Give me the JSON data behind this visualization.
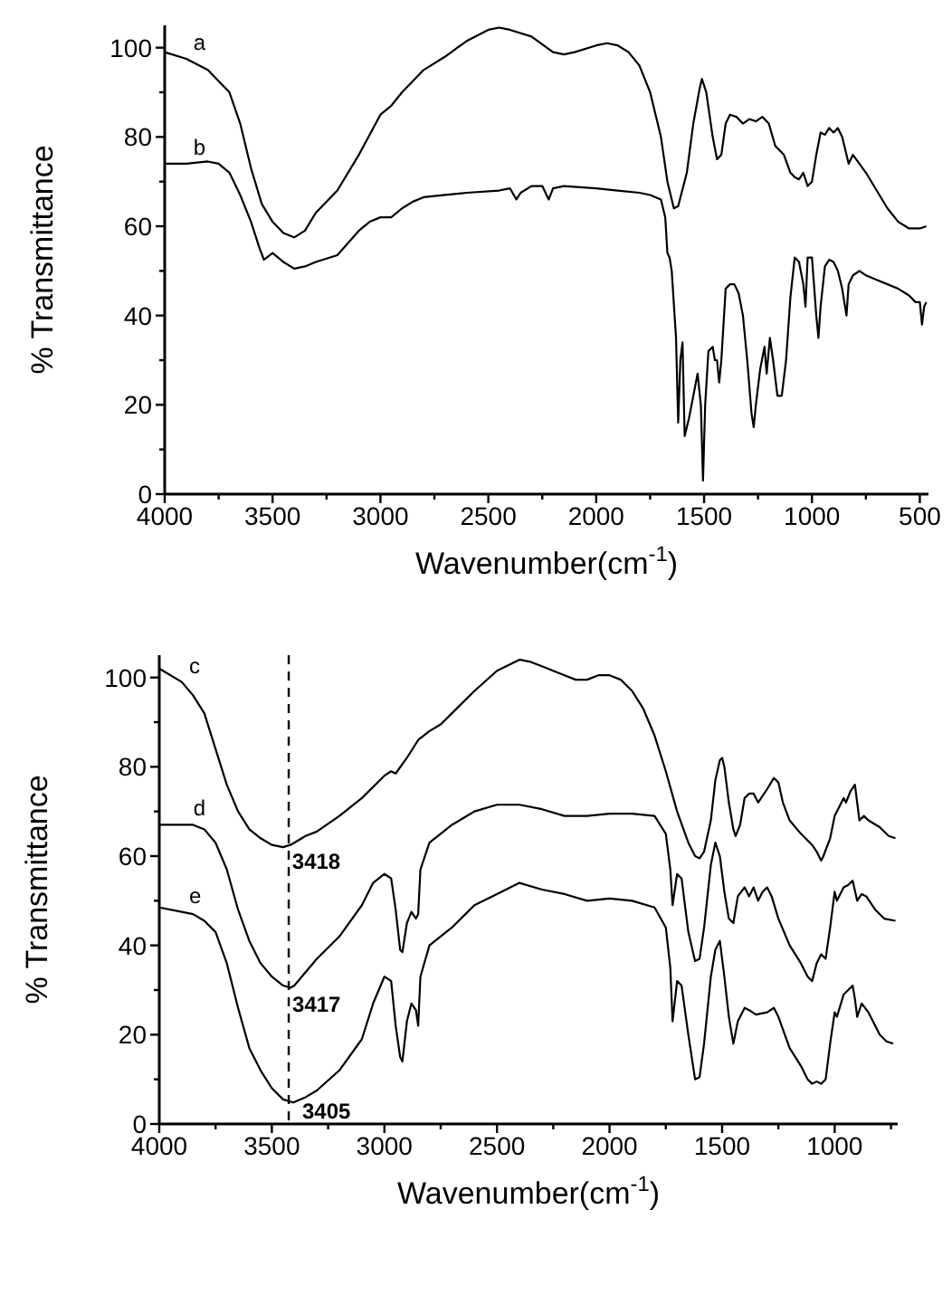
{
  "chart_data": [
    {
      "type": "line",
      "xlabel": "Wavenumber(cm$^{-1}$)",
      "ylabel": "% Transmittance",
      "xlim": [
        4000,
        460
      ],
      "ylim": [
        0,
        105
      ],
      "xticks": [
        4000,
        {
          "value": 3750,
          "label": null
        },
        3500,
        {
          "value": 3250,
          "label": null
        },
        3000,
        {
          "value": 2750,
          "label": null
        },
        2500,
        {
          "value": 2250,
          "label": null
        },
        2000,
        {
          "value": 1750,
          "label": null
        },
        1500,
        {
          "value": 1250,
          "label": null
        },
        1000,
        {
          "value": 750,
          "label": null
        },
        500
      ],
      "yticks": [
        0,
        {
          "value": 10,
          "label": null
        },
        20,
        {
          "value": 30,
          "label": null
        },
        40,
        {
          "value": 50,
          "label": null
        },
        60,
        {
          "value": 70,
          "label": null
        },
        80,
        {
          "value": 90,
          "label": null
        },
        100
      ],
      "grid": false,
      "annotations": [
        {
          "text": "a",
          "x": 3900,
          "y": 97.5
        },
        {
          "text": "b",
          "x": 3900,
          "y": 74
        }
      ],
      "series": [
        {
          "color": "#000000",
          "x": [
            4000,
            3900,
            3800,
            3700,
            3650,
            3600,
            3550,
            3500,
            3450,
            3400,
            3350,
            3300,
            3200,
            3100,
            3000,
            2950,
            2900,
            2800,
            2700,
            2600,
            2500,
            2450,
            2400,
            2300,
            2200,
            2150,
            2100,
            2000,
            1950,
            1900,
            1850,
            1800,
            1750,
            1700,
            1670,
            1640,
            1620,
            1580,
            1550,
            1520,
            1510,
            1490,
            1460,
            1440,
            1420,
            1400,
            1380,
            1350,
            1320,
            1290,
            1260,
            1230,
            1200,
            1170,
            1130,
            1100,
            1080,
            1060,
            1040,
            1020,
            1000,
            980,
            960,
            940,
            920,
            900,
            880,
            860,
            840,
            830,
            810,
            780,
            750,
            700,
            650,
            600,
            550,
            500,
            470
          ],
          "values": [
            99,
            97.5,
            95,
            90,
            83,
            73,
            65,
            61,
            58.5,
            57.5,
            59,
            63,
            68,
            76,
            85,
            87,
            90,
            95,
            98,
            101.5,
            104,
            104.5,
            104,
            102.5,
            99,
            98.5,
            99,
            100.5,
            101,
            100.5,
            99,
            96,
            90,
            80,
            70,
            64,
            64.5,
            72,
            83,
            91,
            93,
            90,
            80,
            75,
            76,
            83,
            85,
            84.5,
            83,
            84,
            83.5,
            84.5,
            83,
            78,
            76,
            72,
            71,
            70.5,
            72,
            69,
            70,
            76,
            81,
            80.5,
            82,
            81,
            82,
            80,
            76,
            74,
            76,
            74,
            72,
            68,
            64,
            61,
            59.5,
            59.5,
            60
          ]
        },
        {
          "color": "#000000",
          "x": [
            4000,
            3900,
            3800,
            3750,
            3700,
            3650,
            3600,
            3560,
            3540,
            3500,
            3450,
            3400,
            3350,
            3300,
            3200,
            3100,
            3050,
            3000,
            2950,
            2900,
            2850,
            2800,
            2700,
            2600,
            2450,
            2400,
            2370,
            2350,
            2300,
            2250,
            2220,
            2200,
            2150,
            2000,
            1900,
            1800,
            1750,
            1700,
            1680,
            1670,
            1660,
            1650,
            1630,
            1620,
            1610,
            1600,
            1590,
            1570,
            1550,
            1530,
            1515,
            1505,
            1495,
            1480,
            1460,
            1450,
            1440,
            1430,
            1420,
            1400,
            1380,
            1360,
            1340,
            1320,
            1300,
            1280,
            1270,
            1260,
            1240,
            1220,
            1210,
            1195,
            1180,
            1160,
            1140,
            1120,
            1100,
            1080,
            1060,
            1040,
            1030,
            1020,
            1000,
            980,
            970,
            960,
            940,
            920,
            900,
            880,
            860,
            840,
            830,
            810,
            780,
            750,
            700,
            650,
            600,
            550,
            520,
            500,
            490,
            480,
            470
          ],
          "values": [
            74,
            74,
            74.5,
            74,
            72,
            67,
            61,
            55,
            52.5,
            54,
            52,
            50.5,
            51,
            52,
            53.5,
            59,
            61,
            62,
            62,
            64,
            65.5,
            66.5,
            67,
            67.5,
            68,
            68.5,
            66,
            67.5,
            69,
            69,
            66,
            68.5,
            69,
            68.5,
            68,
            67.5,
            67,
            66,
            62,
            54,
            53,
            50,
            35,
            16,
            30,
            34,
            13,
            17,
            22,
            27,
            20,
            3,
            20,
            32,
            33,
            30,
            30,
            25,
            30,
            46,
            47,
            47,
            45,
            40,
            30,
            18,
            15,
            20,
            28,
            33,
            27,
            35,
            30,
            22,
            22,
            30,
            44,
            53,
            52,
            47,
            42,
            53,
            53,
            40,
            35,
            42,
            51,
            52.5,
            52,
            50,
            46,
            40,
            47,
            49,
            50,
            49,
            48,
            47,
            46,
            44.5,
            43,
            43,
            38,
            42,
            43
          ]
        }
      ]
    },
    {
      "type": "line",
      "xlabel": "Wavenumber(cm$^{-1}$)",
      "ylabel": "% Transmittance",
      "xlim": [
        4000,
        720
      ],
      "ylim": [
        0,
        105
      ],
      "xticks": [
        4000,
        {
          "value": 3750,
          "label": null
        },
        3500,
        {
          "value": 3250,
          "label": null
        },
        3000,
        {
          "value": 2750,
          "label": null
        },
        2500,
        {
          "value": 2250,
          "label": null
        },
        2000,
        {
          "value": 1750,
          "label": null
        },
        1500,
        {
          "value": 1250,
          "label": null
        },
        1000,
        {
          "value": 750,
          "label": null
        }
      ],
      "yticks": [
        0,
        {
          "value": 10,
          "label": null
        },
        20,
        {
          "value": 30,
          "label": null
        },
        40,
        {
          "value": 50,
          "label": null
        },
        60,
        {
          "value": 70,
          "label": null
        },
        80,
        {
          "value": 90,
          "label": null
        },
        100
      ],
      "grid": false,
      "ref_lines": [
        {
          "axis": "x",
          "value": 3425,
          "line_style": "dashed",
          "color": "#000000"
        }
      ],
      "annotations": [
        {
          "text": "c",
          "x": 3900,
          "y": 99
        },
        {
          "text": "d",
          "x": 3880,
          "y": 67
        },
        {
          "text": "e",
          "x": 3900,
          "y": 47.5
        },
        {
          "text": "3418",
          "x": 3418,
          "y": 62.5
        },
        {
          "text": "3417",
          "x": 3417,
          "y": 30.5
        },
        {
          "text": "3405",
          "x": 3405,
          "y": 4.8
        }
      ],
      "series": [
        {
          "color": "#000000",
          "x": [
            4000,
            3900,
            3850,
            3800,
            3750,
            3700,
            3650,
            3600,
            3550,
            3500,
            3450,
            3418,
            3400,
            3350,
            3300,
            3200,
            3100,
            3000,
            2970,
            2950,
            2900,
            2850,
            2800,
            2750,
            2700,
            2600,
            2500,
            2400,
            2350,
            2300,
            2200,
            2150,
            2100,
            2050,
            2000,
            1950,
            1900,
            1850,
            1800,
            1750,
            1700,
            1650,
            1620,
            1600,
            1580,
            1550,
            1530,
            1510,
            1500,
            1490,
            1470,
            1450,
            1440,
            1420,
            1400,
            1380,
            1360,
            1340,
            1300,
            1270,
            1250,
            1230,
            1200,
            1150,
            1120,
            1100,
            1080,
            1060,
            1050,
            1020,
            1000,
            980,
            960,
            950,
            930,
            910,
            900,
            890,
            870,
            850,
            800,
            760,
            730
          ],
          "values": [
            102,
            99,
            96,
            92,
            84,
            76,
            70,
            66,
            64,
            62.5,
            62,
            62.5,
            63,
            64.5,
            65.5,
            69,
            73,
            78,
            79,
            78.5,
            82,
            86,
            88,
            89.5,
            92,
            97,
            101.5,
            104,
            103.5,
            102.5,
            100.5,
            99.5,
            99.5,
            100.5,
            100.5,
            99.5,
            97,
            93,
            87,
            79,
            70,
            63,
            60,
            59.5,
            61,
            68,
            77,
            81.5,
            82,
            80,
            72,
            66,
            64.5,
            67,
            73,
            74,
            74,
            72,
            75,
            77.5,
            76.5,
            72,
            68,
            65,
            63.5,
            62.5,
            61,
            59,
            60,
            64,
            69,
            71,
            73,
            72,
            74.5,
            76,
            72,
            68,
            69,
            68,
            66.5,
            64.5,
            64
          ]
        },
        {
          "color": "#000000",
          "x": [
            4000,
            3900,
            3850,
            3800,
            3750,
            3700,
            3650,
            3600,
            3550,
            3500,
            3450,
            3417,
            3400,
            3350,
            3300,
            3200,
            3100,
            3050,
            3000,
            2970,
            2950,
            2930,
            2920,
            2900,
            2880,
            2860,
            2850,
            2840,
            2800,
            2750,
            2700,
            2600,
            2500,
            2400,
            2300,
            2200,
            2100,
            2000,
            1900,
            1800,
            1750,
            1730,
            1720,
            1700,
            1680,
            1650,
            1620,
            1600,
            1580,
            1550,
            1530,
            1510,
            1490,
            1470,
            1450,
            1430,
            1400,
            1380,
            1360,
            1340,
            1320,
            1300,
            1280,
            1250,
            1200,
            1150,
            1120,
            1100,
            1080,
            1060,
            1040,
            1020,
            1000,
            990,
            960,
            940,
            920,
            900,
            880,
            860,
            820,
            780,
            730
          ],
          "values": [
            67,
            67,
            67,
            66,
            63,
            57,
            48,
            41,
            36,
            33,
            31,
            30.5,
            31,
            34,
            37,
            42,
            49,
            54,
            56,
            55,
            48,
            39,
            38.5,
            45,
            47.5,
            46,
            47,
            57,
            63,
            65,
            67,
            70,
            71.5,
            71.5,
            70.5,
            69,
            69,
            69.5,
            69.5,
            69,
            65,
            57,
            49,
            56,
            55,
            43,
            36.5,
            37,
            44,
            58,
            63,
            60,
            52,
            46,
            45,
            51,
            53,
            51,
            53,
            50,
            52,
            53,
            51,
            46,
            40,
            36,
            33,
            32,
            36,
            38,
            37,
            44,
            52,
            50,
            53,
            53.5,
            54.5,
            50,
            51.5,
            51,
            48,
            46,
            45.5
          ]
        },
        {
          "color": "#000000",
          "x": [
            4000,
            3900,
            3850,
            3800,
            3750,
            3700,
            3650,
            3600,
            3550,
            3500,
            3450,
            3405,
            3350,
            3300,
            3200,
            3100,
            3050,
            3000,
            2970,
            2950,
            2930,
            2920,
            2900,
            2880,
            2860,
            2850,
            2840,
            2800,
            2700,
            2600,
            2500,
            2400,
            2300,
            2200,
            2100,
            2000,
            1900,
            1800,
            1750,
            1730,
            1720,
            1700,
            1680,
            1650,
            1620,
            1600,
            1580,
            1550,
            1530,
            1510,
            1490,
            1470,
            1450,
            1430,
            1400,
            1380,
            1350,
            1300,
            1270,
            1250,
            1200,
            1150,
            1120,
            1100,
            1080,
            1060,
            1040,
            1020,
            1000,
            990,
            960,
            940,
            920,
            910,
            900,
            880,
            850,
            800,
            770,
            740
          ],
          "values": [
            48.5,
            47.5,
            47,
            45.5,
            43,
            36,
            26,
            17,
            12,
            8,
            5.5,
            4.8,
            6,
            7.5,
            12,
            19,
            27,
            33,
            32,
            22,
            15,
            14,
            23,
            27,
            25.5,
            22,
            33,
            40,
            44,
            49,
            51.5,
            54,
            52.5,
            51.5,
            50,
            50.5,
            50,
            48.5,
            44,
            35,
            23,
            32,
            31,
            20,
            10,
            10.5,
            18,
            33,
            39,
            41,
            33,
            24,
            18,
            23,
            26,
            25.5,
            24.5,
            25,
            26,
            24,
            17,
            13,
            10,
            9,
            9.5,
            9,
            10,
            18,
            25,
            24,
            29,
            30,
            31,
            28,
            24,
            27,
            25,
            20,
            18.5,
            18
          ]
        }
      ]
    }
  ]
}
